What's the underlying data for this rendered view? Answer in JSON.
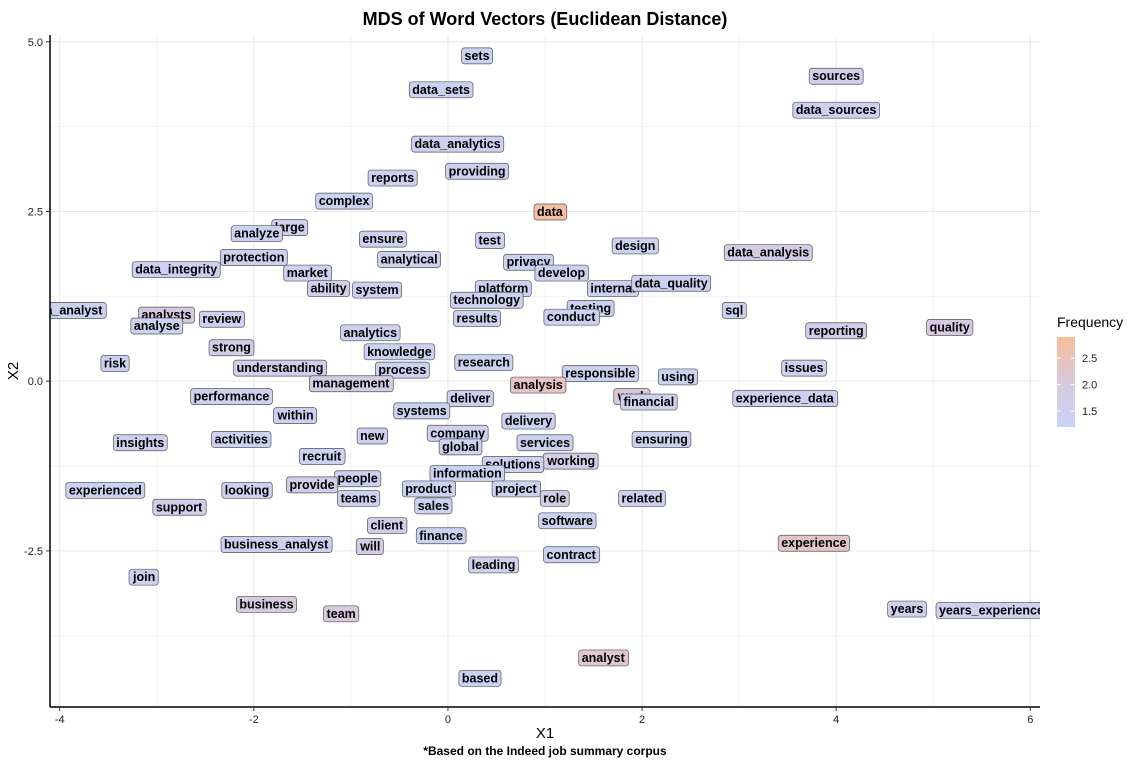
{
  "chart_data": {
    "type": "scatter",
    "title": "MDS of Word Vectors (Euclidean Distance)",
    "xlabel": "X1",
    "ylabel": "X2",
    "caption": "*Based on the Indeed job summary corpus",
    "xlim": [
      -4.1,
      6.1
    ],
    "ylim": [
      -4.8,
      5.1
    ],
    "xticks": [
      -4,
      -2,
      0,
      2,
      4,
      6
    ],
    "yticks": [
      -2.5,
      0.0,
      2.5,
      5.0
    ],
    "ytick_labels": [
      "-2.5",
      "0.0",
      "2.5",
      "5.0"
    ],
    "grid": true,
    "legend": {
      "title": "Frequency",
      "position": "right",
      "range": [
        1.2,
        2.9
      ],
      "ticks": [
        1.5,
        2.0,
        2.5
      ],
      "tick_labels": [
        "1.5",
        "2.0",
        "2.5"
      ],
      "color_low": "#c8d4f6",
      "color_mid": "#d8c8dc",
      "color_high": "#f8be9c"
    },
    "points": [
      {
        "label": "sets",
        "x": 0.3,
        "y": 4.8,
        "freq": 1.4
      },
      {
        "label": "data_sets",
        "x": -0.07,
        "y": 4.3,
        "freq": 1.4
      },
      {
        "label": "sources",
        "x": 4.0,
        "y": 4.5,
        "freq": 1.6
      },
      {
        "label": "data_sources",
        "x": 4.0,
        "y": 4.0,
        "freq": 1.4
      },
      {
        "label": "data_analytics",
        "x": 0.1,
        "y": 3.5,
        "freq": 1.4
      },
      {
        "label": "reports",
        "x": -0.57,
        "y": 3.0,
        "freq": 1.5
      },
      {
        "label": "providing",
        "x": 0.3,
        "y": 3.1,
        "freq": 1.4
      },
      {
        "label": "complex",
        "x": -1.07,
        "y": 2.66,
        "freq": 1.4
      },
      {
        "label": "data",
        "x": 1.05,
        "y": 2.5,
        "freq": 2.8
      },
      {
        "label": "large",
        "x": -1.63,
        "y": 2.27,
        "freq": 1.5
      },
      {
        "label": "analyze",
        "x": -1.97,
        "y": 2.18,
        "freq": 1.4
      },
      {
        "label": "ensure",
        "x": -0.67,
        "y": 2.1,
        "freq": 1.4
      },
      {
        "label": "test",
        "x": 0.43,
        "y": 2.08,
        "freq": 1.4
      },
      {
        "label": "design",
        "x": 1.93,
        "y": 2.0,
        "freq": 1.4
      },
      {
        "label": "data_analysis",
        "x": 3.3,
        "y": 1.9,
        "freq": 1.8
      },
      {
        "label": "protection",
        "x": -2.0,
        "y": 1.83,
        "freq": 1.4
      },
      {
        "label": "analytical",
        "x": -0.4,
        "y": 1.8,
        "freq": 1.4
      },
      {
        "label": "privacy",
        "x": 0.83,
        "y": 1.76,
        "freq": 1.4
      },
      {
        "label": "data_integrity",
        "x": -2.8,
        "y": 1.65,
        "freq": 1.4
      },
      {
        "label": "market",
        "x": -1.45,
        "y": 1.6,
        "freq": 1.4
      },
      {
        "label": "develop",
        "x": 1.17,
        "y": 1.6,
        "freq": 1.4
      },
      {
        "label": "platform",
        "x": 0.57,
        "y": 1.37,
        "freq": 1.4
      },
      {
        "label": "internal",
        "x": 1.7,
        "y": 1.37,
        "freq": 1.4
      },
      {
        "label": "data_quality",
        "x": 2.3,
        "y": 1.45,
        "freq": 1.4
      },
      {
        "label": "ability",
        "x": -1.23,
        "y": 1.37,
        "freq": 1.6
      },
      {
        "label": "system",
        "x": -0.73,
        "y": 1.35,
        "freq": 1.4
      },
      {
        "label": "technology",
        "x": 0.4,
        "y": 1.2,
        "freq": 1.4
      },
      {
        "label": "testing",
        "x": 1.47,
        "y": 1.08,
        "freq": 1.4
      },
      {
        "label": "sql",
        "x": 2.95,
        "y": 1.05,
        "freq": 1.4
      },
      {
        "label": "data_analyst",
        "x": -3.95,
        "y": 1.05,
        "freq": 1.4
      },
      {
        "label": "analysts",
        "x": -2.9,
        "y": 0.98,
        "freq": 1.9
      },
      {
        "label": "analyse",
        "x": -3.0,
        "y": 0.82,
        "freq": 1.4
      },
      {
        "label": "review",
        "x": -2.33,
        "y": 0.92,
        "freq": 1.4
      },
      {
        "label": "results",
        "x": 0.3,
        "y": 0.93,
        "freq": 1.4
      },
      {
        "label": "conduct",
        "x": 1.27,
        "y": 0.95,
        "freq": 1.4
      },
      {
        "label": "reporting",
        "x": 4.0,
        "y": 0.75,
        "freq": 1.6
      },
      {
        "label": "quality",
        "x": 5.17,
        "y": 0.8,
        "freq": 1.9
      },
      {
        "label": "analytics",
        "x": -0.8,
        "y": 0.72,
        "freq": 1.4
      },
      {
        "label": "strong",
        "x": -2.23,
        "y": 0.5,
        "freq": 1.7
      },
      {
        "label": "knowledge",
        "x": -0.5,
        "y": 0.44,
        "freq": 1.4
      },
      {
        "label": "risk",
        "x": -3.43,
        "y": 0.27,
        "freq": 1.4
      },
      {
        "label": "research",
        "x": 0.37,
        "y": 0.28,
        "freq": 1.4
      },
      {
        "label": "process",
        "x": -0.47,
        "y": 0.17,
        "freq": 1.4
      },
      {
        "label": "understanding",
        "x": -1.73,
        "y": 0.2,
        "freq": 1.6
      },
      {
        "label": "issues",
        "x": 3.67,
        "y": 0.2,
        "freq": 1.4
      },
      {
        "label": "responsible",
        "x": 1.57,
        "y": 0.12,
        "freq": 1.4
      },
      {
        "label": "using",
        "x": 2.37,
        "y": 0.07,
        "freq": 1.4
      },
      {
        "label": "management",
        "x": -1.0,
        "y": -0.03,
        "freq": 1.8
      },
      {
        "label": "analysis",
        "x": 0.93,
        "y": -0.05,
        "freq": 2.4
      },
      {
        "label": "performance",
        "x": -2.23,
        "y": -0.22,
        "freq": 1.4
      },
      {
        "label": "deliver",
        "x": 0.23,
        "y": -0.25,
        "freq": 1.4
      },
      {
        "label": "work",
        "x": 1.9,
        "y": -0.22,
        "freq": 2.1
      },
      {
        "label": "financial",
        "x": 2.07,
        "y": -0.3,
        "freq": 1.5
      },
      {
        "label": "experience_data",
        "x": 3.47,
        "y": -0.25,
        "freq": 1.4
      },
      {
        "label": "within",
        "x": -1.57,
        "y": -0.5,
        "freq": 1.4
      },
      {
        "label": "systems",
        "x": -0.27,
        "y": -0.43,
        "freq": 1.4
      },
      {
        "label": "delivery",
        "x": 0.83,
        "y": -0.58,
        "freq": 1.4
      },
      {
        "label": "new",
        "x": -0.78,
        "y": -0.8,
        "freq": 1.4
      },
      {
        "label": "company",
        "x": 0.1,
        "y": -0.76,
        "freq": 1.4
      },
      {
        "label": "activities",
        "x": -2.13,
        "y": -0.85,
        "freq": 1.4
      },
      {
        "label": "insights",
        "x": -3.17,
        "y": -0.9,
        "freq": 1.5
      },
      {
        "label": "services",
        "x": 1.0,
        "y": -0.9,
        "freq": 1.4
      },
      {
        "label": "ensuring",
        "x": 2.2,
        "y": -0.85,
        "freq": 1.4
      },
      {
        "label": "global",
        "x": 0.13,
        "y": -0.96,
        "freq": 1.4
      },
      {
        "label": "recruit",
        "x": -1.3,
        "y": -1.1,
        "freq": 1.4
      },
      {
        "label": "working",
        "x": 1.27,
        "y": -1.17,
        "freq": 1.7
      },
      {
        "label": "solutions",
        "x": 0.67,
        "y": -1.22,
        "freq": 1.4
      },
      {
        "label": "information",
        "x": 0.2,
        "y": -1.35,
        "freq": 1.4
      },
      {
        "label": "people",
        "x": -0.93,
        "y": -1.43,
        "freq": 1.4
      },
      {
        "label": "experienced",
        "x": -3.53,
        "y": -1.6,
        "freq": 1.4
      },
      {
        "label": "looking",
        "x": -2.07,
        "y": -1.6,
        "freq": 1.5
      },
      {
        "label": "provide",
        "x": -1.4,
        "y": -1.52,
        "freq": 1.6
      },
      {
        "label": "product",
        "x": -0.2,
        "y": -1.58,
        "freq": 1.4
      },
      {
        "label": "project",
        "x": 0.7,
        "y": -1.58,
        "freq": 1.4
      },
      {
        "label": "role",
        "x": 1.1,
        "y": -1.72,
        "freq": 1.8
      },
      {
        "label": "related",
        "x": 2.0,
        "y": -1.72,
        "freq": 1.4
      },
      {
        "label": "teams",
        "x": -0.92,
        "y": -1.72,
        "freq": 1.4
      },
      {
        "label": "sales",
        "x": -0.15,
        "y": -1.83,
        "freq": 1.4
      },
      {
        "label": "support",
        "x": -2.77,
        "y": -1.85,
        "freq": 1.6
      },
      {
        "label": "software",
        "x": 1.23,
        "y": -2.05,
        "freq": 1.4
      },
      {
        "label": "client",
        "x": -0.63,
        "y": -2.12,
        "freq": 1.7
      },
      {
        "label": "finance",
        "x": -0.07,
        "y": -2.27,
        "freq": 1.4
      },
      {
        "label": "business_analyst",
        "x": -1.77,
        "y": -2.4,
        "freq": 1.4
      },
      {
        "label": "will",
        "x": -0.8,
        "y": -2.43,
        "freq": 1.8
      },
      {
        "label": "experience",
        "x": 3.77,
        "y": -2.38,
        "freq": 2.3
      },
      {
        "label": "contract",
        "x": 1.27,
        "y": -2.55,
        "freq": 1.4
      },
      {
        "label": "leading",
        "x": 0.47,
        "y": -2.7,
        "freq": 1.5
      },
      {
        "label": "join",
        "x": -3.13,
        "y": -2.88,
        "freq": 1.4
      },
      {
        "label": "business",
        "x": -1.87,
        "y": -3.28,
        "freq": 2.0
      },
      {
        "label": "team",
        "x": -1.1,
        "y": -3.42,
        "freq": 2.0
      },
      {
        "label": "years",
        "x": 4.73,
        "y": -3.35,
        "freq": 1.5
      },
      {
        "label": "years_experience",
        "x": 5.6,
        "y": -3.37,
        "freq": 1.5
      },
      {
        "label": "analyst",
        "x": 1.6,
        "y": -4.07,
        "freq": 2.2
      },
      {
        "label": "based",
        "x": 0.33,
        "y": -4.37,
        "freq": 1.4
      }
    ]
  }
}
